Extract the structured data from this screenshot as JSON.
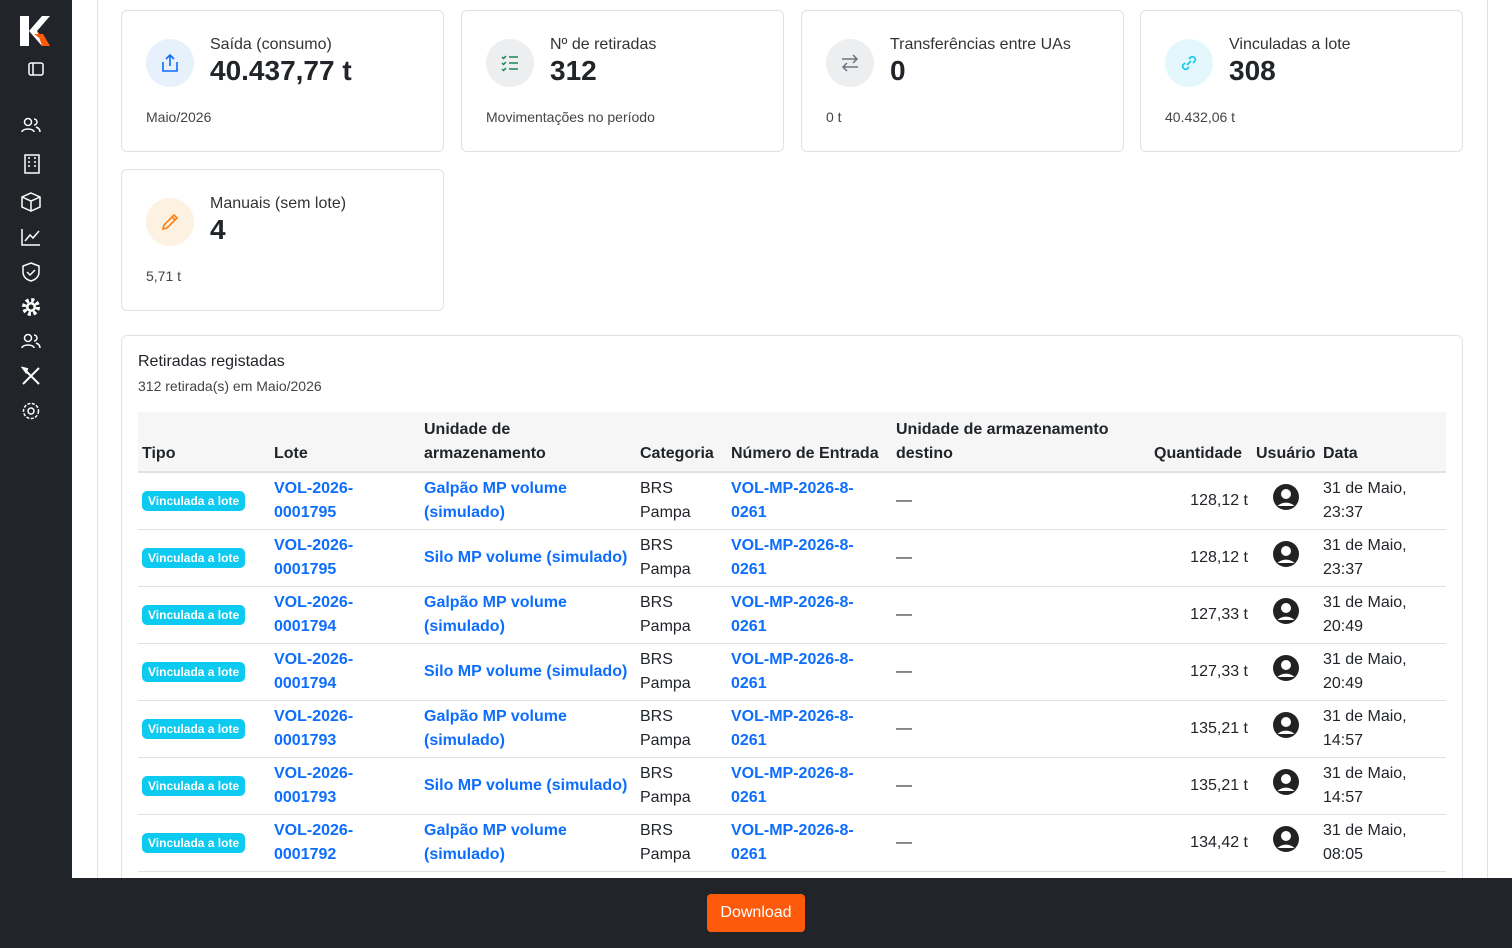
{
  "cards": [
    {
      "title": "Saída (consumo)",
      "value": "40.437,77 t",
      "note": "Maio/2026"
    },
    {
      "title": "Nº de retiradas",
      "value": "312",
      "note": "Movimentações no período"
    },
    {
      "title": "Transferências entre UAs",
      "value": "0",
      "note": "0 t"
    },
    {
      "title": "Vinculadas a lote",
      "value": "308",
      "note": "40.432,06 t"
    },
    {
      "title": "Manuais (sem lote)",
      "value": "4",
      "note": "5,71 t"
    }
  ],
  "table": {
    "title": "Retiradas registadas",
    "subtitle": "312 retirada(s) em Maio/2026",
    "headers": [
      "Tipo",
      "Lote",
      "Unidade de armazenamento",
      "Categoria",
      "Número de Entrada",
      "Unidade de armazenamento destino",
      "Quantidade",
      "Usuário",
      "Data"
    ],
    "rows": [
      {
        "tipo": "Vinculada a lote",
        "lote": "VOL-2026-0001795",
        "unidade": "Galpão MP volume (simulado)",
        "categoria": "BRS Pampa",
        "numero": "VOL-MP-2026-8-0261",
        "destino": "—",
        "quantidade": "128,12 t",
        "data": "31 de Maio, 23:37"
      },
      {
        "tipo": "Vinculada a lote",
        "lote": "VOL-2026-0001795",
        "unidade": "Silo MP volume (simulado)",
        "categoria": "BRS Pampa",
        "numero": "VOL-MP-2026-8-0261",
        "destino": "—",
        "quantidade": "128,12 t",
        "data": "31 de Maio, 23:37"
      },
      {
        "tipo": "Vinculada a lote",
        "lote": "VOL-2026-0001794",
        "unidade": "Galpão MP volume (simulado)",
        "categoria": "BRS Pampa",
        "numero": "VOL-MP-2026-8-0261",
        "destino": "—",
        "quantidade": "127,33 t",
        "data": "31 de Maio, 20:49"
      },
      {
        "tipo": "Vinculada a lote",
        "lote": "VOL-2026-0001794",
        "unidade": "Silo MP volume (simulado)",
        "categoria": "BRS Pampa",
        "numero": "VOL-MP-2026-8-0261",
        "destino": "—",
        "quantidade": "127,33 t",
        "data": "31 de Maio, 20:49"
      },
      {
        "tipo": "Vinculada a lote",
        "lote": "VOL-2026-0001793",
        "unidade": "Galpão MP volume (simulado)",
        "categoria": "BRS Pampa",
        "numero": "VOL-MP-2026-8-0261",
        "destino": "—",
        "quantidade": "135,21 t",
        "data": "31 de Maio, 14:57"
      },
      {
        "tipo": "Vinculada a lote",
        "lote": "VOL-2026-0001793",
        "unidade": "Silo MP volume (simulado)",
        "categoria": "BRS Pampa",
        "numero": "VOL-MP-2026-8-0261",
        "destino": "—",
        "quantidade": "135,21 t",
        "data": "31 de Maio, 14:57"
      },
      {
        "tipo": "Vinculada a lote",
        "lote": "VOL-2026-0001792",
        "unidade": "Galpão MP volume (simulado)",
        "categoria": "BRS Pampa",
        "numero": "VOL-MP-2026-8-0261",
        "destino": "—",
        "quantidade": "134,42 t",
        "data": "31 de Maio, 08:05"
      }
    ]
  },
  "download": "Download"
}
